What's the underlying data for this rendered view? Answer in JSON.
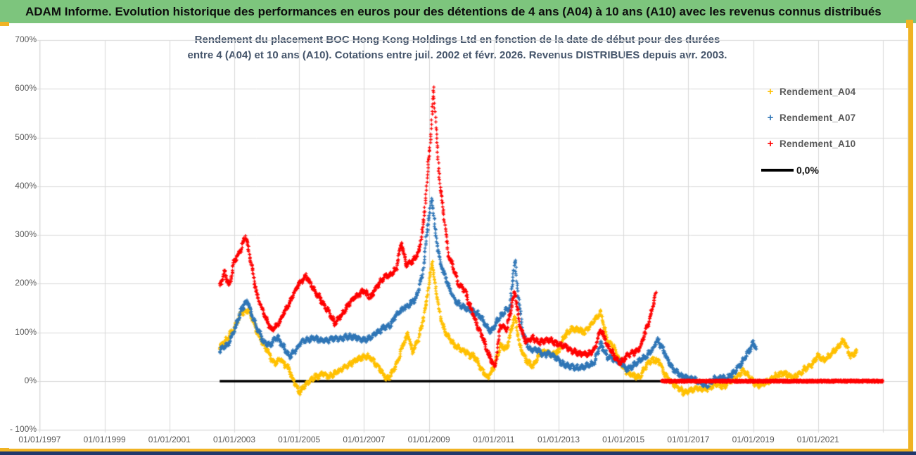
{
  "header": {
    "title": "ADAM Informe. Evolution historique des performances en euros pour des détentions de 4 ans (A04) à 10 ans (A10) avec les revenus connus distribués"
  },
  "colors": {
    "header_green": "#7DC57D",
    "frame_gold": "#F0B323",
    "footer_navy": "#20386B",
    "grid": "#D9D9D9",
    "axis_text": "#595959",
    "title_text": "#44546A",
    "zero_line": "#000000",
    "plot_border": "#D9D9D9"
  },
  "chart_data": {
    "type": "scatter",
    "title_line1": "Rendement du placement BOC Hong Kong Holdings Ltd en fonction de la date de début pour des durées",
    "title_line2": "entre 4 (A04) et 10 ans (A10). Cotations entre juil. 2002 et févr. 2026.  Revenus DISTRIBUES depuis avr. 2003.",
    "x_axis": {
      "gridline_years": [
        1997,
        1999,
        2001,
        2003,
        2005,
        2007,
        2009,
        2011,
        2013,
        2015,
        2017,
        2019,
        2021,
        2023
      ],
      "tick_labels": [
        {
          "year": 1997,
          "label": "01/01/1997"
        },
        {
          "year": 1999,
          "label": "01/01/1999"
        },
        {
          "year": 2001,
          "label": "01/01/2001"
        },
        {
          "year": 2003,
          "label": "01/01/2003"
        },
        {
          "year": 2005,
          "label": "01/01/2005"
        },
        {
          "year": 2007,
          "label": "01/01/2007"
        },
        {
          "year": 2009,
          "label": "01/01/2009"
        },
        {
          "year": 2011,
          "label": "01/01/2011"
        },
        {
          "year": 2013,
          "label": "01/01/2013"
        },
        {
          "year": 2015,
          "label": "01/01/2015"
        },
        {
          "year": 2017,
          "label": "01/01/2017"
        },
        {
          "year": 2019,
          "label": "01/01/2019"
        },
        {
          "year": 2021,
          "label": "01/01/2021"
        }
      ]
    },
    "y_axis": {
      "unit": "%",
      "ticks": [
        {
          "value": 700,
          "label": "700%"
        },
        {
          "value": 600,
          "label": "600%"
        },
        {
          "value": 500,
          "label": "500%"
        },
        {
          "value": 400,
          "label": "400%"
        },
        {
          "value": 300,
          "label": "300%"
        },
        {
          "value": 200,
          "label": "200%"
        },
        {
          "value": 100,
          "label": "100%"
        },
        {
          "value": 0,
          "label": "0%"
        },
        {
          "value": -100,
          "label": "- 100%"
        }
      ]
    },
    "zero_line": {
      "label": "0,0%",
      "value": 0,
      "start_year": 2002.55,
      "end_year": 2023.0
    },
    "series": [
      {
        "name": "Rendement_A04",
        "color": "#FFC000",
        "marker": "+",
        "anchors": [
          [
            2002.55,
            68
          ],
          [
            2002.8,
            85
          ],
          [
            2003.0,
            105
          ],
          [
            2003.2,
            135
          ],
          [
            2003.45,
            140
          ],
          [
            2003.6,
            115
          ],
          [
            2003.8,
            80
          ],
          [
            2004.0,
            60
          ],
          [
            2004.2,
            32
          ],
          [
            2004.45,
            42
          ],
          [
            2004.65,
            25
          ],
          [
            2004.8,
            5
          ],
          [
            2005.0,
            -20
          ],
          [
            2005.15,
            -10
          ],
          [
            2005.3,
            2
          ],
          [
            2005.5,
            12
          ],
          [
            2005.7,
            15
          ],
          [
            2005.95,
            12
          ],
          [
            2006.2,
            18
          ],
          [
            2006.45,
            28
          ],
          [
            2006.7,
            40
          ],
          [
            2006.95,
            50
          ],
          [
            2007.2,
            48
          ],
          [
            2007.45,
            30
          ],
          [
            2007.65,
            8
          ],
          [
            2007.8,
            12
          ],
          [
            2008.0,
            35
          ],
          [
            2008.2,
            75
          ],
          [
            2008.35,
            100
          ],
          [
            2008.5,
            60
          ],
          [
            2008.7,
            95
          ],
          [
            2008.85,
            140
          ],
          [
            2009.0,
            200
          ],
          [
            2009.1,
            252
          ],
          [
            2009.2,
            200
          ],
          [
            2009.35,
            140
          ],
          [
            2009.5,
            105
          ],
          [
            2009.65,
            90
          ],
          [
            2009.8,
            80
          ],
          [
            2010.0,
            70
          ],
          [
            2010.2,
            60
          ],
          [
            2010.4,
            55
          ],
          [
            2010.6,
            30
          ],
          [
            2010.8,
            8
          ],
          [
            2011.0,
            25
          ],
          [
            2011.2,
            70
          ],
          [
            2011.4,
            65
          ],
          [
            2011.65,
            135
          ],
          [
            2011.8,
            75
          ],
          [
            2012.0,
            45
          ],
          [
            2012.2,
            30
          ],
          [
            2012.4,
            50
          ],
          [
            2012.6,
            55
          ],
          [
            2012.8,
            48
          ],
          [
            2013.0,
            55
          ],
          [
            2013.2,
            90
          ],
          [
            2013.4,
            100
          ],
          [
            2013.6,
            100
          ],
          [
            2013.8,
            95
          ],
          [
            2014.0,
            110
          ],
          [
            2014.3,
            138
          ],
          [
            2014.5,
            75
          ],
          [
            2014.7,
            65
          ],
          [
            2014.9,
            32
          ],
          [
            2015.1,
            15
          ],
          [
            2015.3,
            5
          ],
          [
            2015.5,
            2
          ],
          [
            2015.7,
            25
          ],
          [
            2015.9,
            40
          ],
          [
            2016.1,
            35
          ],
          [
            2016.3,
            10
          ],
          [
            2016.5,
            -5
          ],
          [
            2016.7,
            -12
          ],
          [
            2016.9,
            -18
          ],
          [
            2017.1,
            -15
          ],
          [
            2017.3,
            -10
          ],
          [
            2017.5,
            -14
          ],
          [
            2017.7,
            -8
          ],
          [
            2017.9,
            -5
          ],
          [
            2018.1,
            -10
          ],
          [
            2018.3,
            0
          ],
          [
            2018.5,
            8
          ],
          [
            2018.7,
            22
          ],
          [
            2018.85,
            12
          ],
          [
            2019.0,
            -5
          ],
          [
            2019.2,
            -12
          ],
          [
            2019.4,
            -8
          ],
          [
            2019.6,
            0
          ],
          [
            2019.8,
            8
          ],
          [
            2020.0,
            12
          ],
          [
            2020.2,
            5
          ],
          [
            2020.4,
            15
          ],
          [
            2020.6,
            25
          ],
          [
            2020.8,
            35
          ],
          [
            2021.0,
            52
          ],
          [
            2021.2,
            45
          ],
          [
            2021.4,
            60
          ],
          [
            2021.6,
            75
          ],
          [
            2021.78,
            90
          ],
          [
            2021.9,
            72
          ],
          [
            2022.0,
            55
          ],
          [
            2022.2,
            60
          ]
        ]
      },
      {
        "name": "Rendement_A07",
        "color": "#2E75B6",
        "marker": "+",
        "anchors": [
          [
            2002.55,
            65
          ],
          [
            2002.8,
            80
          ],
          [
            2003.0,
            110
          ],
          [
            2003.2,
            150
          ],
          [
            2003.4,
            172
          ],
          [
            2003.6,
            130
          ],
          [
            2003.9,
            85
          ],
          [
            2004.1,
            80
          ],
          [
            2004.35,
            95
          ],
          [
            2004.55,
            70
          ],
          [
            2004.7,
            55
          ],
          [
            2004.9,
            70
          ],
          [
            2005.1,
            88
          ],
          [
            2005.4,
            92
          ],
          [
            2005.7,
            85
          ],
          [
            2006.0,
            90
          ],
          [
            2006.3,
            88
          ],
          [
            2006.6,
            92
          ],
          [
            2006.9,
            88
          ],
          [
            2007.2,
            95
          ],
          [
            2007.5,
            110
          ],
          [
            2007.8,
            120
          ],
          [
            2008.0,
            140
          ],
          [
            2008.2,
            150
          ],
          [
            2008.4,
            160
          ],
          [
            2008.6,
            170
          ],
          [
            2008.8,
            220
          ],
          [
            2008.95,
            310
          ],
          [
            2009.1,
            375
          ],
          [
            2009.2,
            300
          ],
          [
            2009.35,
            240
          ],
          [
            2009.5,
            210
          ],
          [
            2009.65,
            185
          ],
          [
            2009.8,
            165
          ],
          [
            2010.0,
            155
          ],
          [
            2010.2,
            150
          ],
          [
            2010.5,
            140
          ],
          [
            2010.7,
            120
          ],
          [
            2010.9,
            95
          ],
          [
            2011.1,
            120
          ],
          [
            2011.3,
            140
          ],
          [
            2011.5,
            150
          ],
          [
            2011.65,
            250
          ],
          [
            2011.75,
            180
          ],
          [
            2011.9,
            100
          ],
          [
            2012.1,
            70
          ],
          [
            2012.3,
            72
          ],
          [
            2012.5,
            60
          ],
          [
            2012.7,
            62
          ],
          [
            2012.9,
            55
          ],
          [
            2013.1,
            42
          ],
          [
            2013.35,
            35
          ],
          [
            2013.6,
            32
          ],
          [
            2013.85,
            38
          ],
          [
            2014.1,
            40
          ],
          [
            2014.3,
            80
          ],
          [
            2014.5,
            55
          ],
          [
            2014.7,
            48
          ],
          [
            2014.9,
            45
          ],
          [
            2015.1,
            30
          ],
          [
            2015.3,
            38
          ],
          [
            2015.5,
            45
          ],
          [
            2015.7,
            55
          ],
          [
            2015.9,
            70
          ],
          [
            2016.05,
            90
          ],
          [
            2016.2,
            75
          ],
          [
            2016.4,
            45
          ],
          [
            2016.6,
            25
          ],
          [
            2016.8,
            15
          ],
          [
            2017.0,
            10
          ],
          [
            2017.2,
            5
          ],
          [
            2017.4,
            -5
          ],
          [
            2017.6,
            -8
          ],
          [
            2017.8,
            5
          ],
          [
            2018.0,
            10
          ],
          [
            2018.2,
            5
          ],
          [
            2018.4,
            18
          ],
          [
            2018.55,
            30
          ],
          [
            2018.7,
            45
          ],
          [
            2018.85,
            60
          ],
          [
            2019.0,
            78
          ],
          [
            2019.1,
            70
          ]
        ]
      },
      {
        "name": "Rendement_A10",
        "color": "#FF0000",
        "marker": "+",
        "anchors": [
          [
            2002.55,
            195
          ],
          [
            2002.7,
            225
          ],
          [
            2002.85,
            195
          ],
          [
            2003.0,
            245
          ],
          [
            2003.15,
            260
          ],
          [
            2003.35,
            300
          ],
          [
            2003.5,
            250
          ],
          [
            2003.7,
            175
          ],
          [
            2003.9,
            140
          ],
          [
            2004.15,
            105
          ],
          [
            2004.4,
            120
          ],
          [
            2004.7,
            160
          ],
          [
            2004.95,
            195
          ],
          [
            2005.2,
            215
          ],
          [
            2005.45,
            185
          ],
          [
            2005.7,
            160
          ],
          [
            2005.95,
            135
          ],
          [
            2006.1,
            115
          ],
          [
            2006.3,
            130
          ],
          [
            2006.5,
            150
          ],
          [
            2006.7,
            165
          ],
          [
            2007.0,
            180
          ],
          [
            2007.2,
            165
          ],
          [
            2007.4,
            190
          ],
          [
            2007.6,
            205
          ],
          [
            2007.8,
            215
          ],
          [
            2008.0,
            225
          ],
          [
            2008.15,
            285
          ],
          [
            2008.3,
            235
          ],
          [
            2008.5,
            245
          ],
          [
            2008.7,
            265
          ],
          [
            2008.85,
            330
          ],
          [
            2008.95,
            420
          ],
          [
            2009.05,
            500
          ],
          [
            2009.15,
            600
          ],
          [
            2009.25,
            480
          ],
          [
            2009.35,
            400
          ],
          [
            2009.45,
            350
          ],
          [
            2009.6,
            260
          ],
          [
            2009.75,
            235
          ],
          [
            2009.9,
            200
          ],
          [
            2010.1,
            190
          ],
          [
            2010.3,
            150
          ],
          [
            2010.5,
            115
          ],
          [
            2010.7,
            85
          ],
          [
            2010.9,
            50
          ],
          [
            2011.05,
            35
          ],
          [
            2011.2,
            120
          ],
          [
            2011.4,
            110
          ],
          [
            2011.65,
            190
          ],
          [
            2011.8,
            120
          ],
          [
            2012.0,
            85
          ],
          [
            2012.2,
            95
          ],
          [
            2012.4,
            85
          ],
          [
            2012.6,
            90
          ],
          [
            2012.8,
            85
          ],
          [
            2013.0,
            78
          ],
          [
            2013.3,
            72
          ],
          [
            2013.6,
            62
          ],
          [
            2013.9,
            60
          ],
          [
            2014.1,
            70
          ],
          [
            2014.3,
            112
          ],
          [
            2014.5,
            80
          ],
          [
            2014.7,
            60
          ],
          [
            2014.9,
            42
          ],
          [
            2015.1,
            55
          ],
          [
            2015.3,
            60
          ],
          [
            2015.5,
            72
          ],
          [
            2015.7,
            110
          ],
          [
            2015.85,
            140
          ],
          [
            2016.0,
            183
          ]
        ],
        "zero_tail": {
          "start_year": 2016.17,
          "end_year": 2023.0,
          "value": 0
        }
      }
    ],
    "legend": {
      "zero_label": "0,0%"
    }
  }
}
